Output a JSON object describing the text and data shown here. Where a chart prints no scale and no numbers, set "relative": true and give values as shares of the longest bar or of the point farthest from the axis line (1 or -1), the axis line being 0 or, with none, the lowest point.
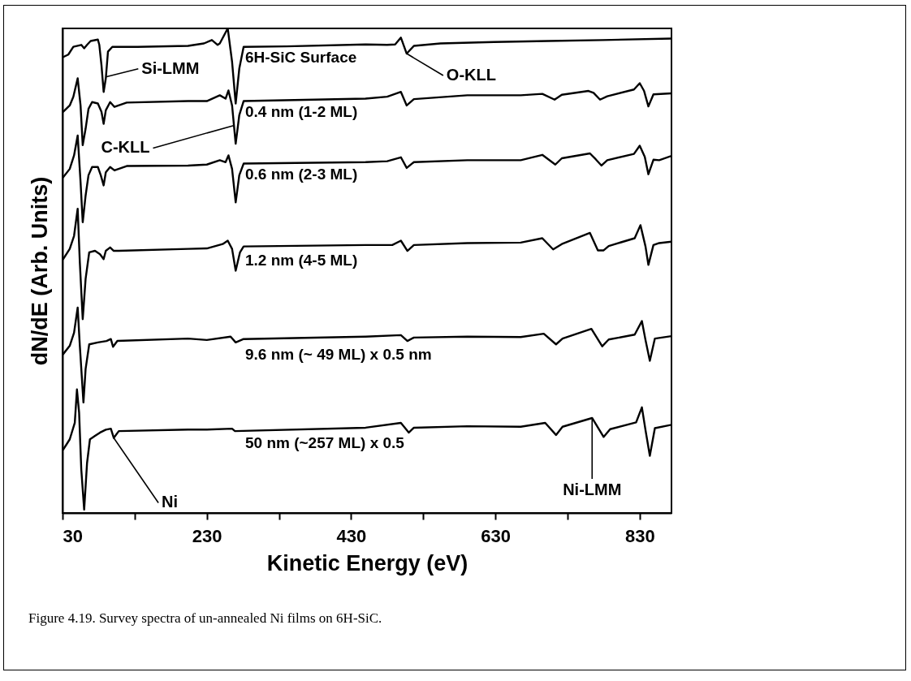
{
  "chart_data": {
    "type": "line",
    "xlabel": "Kinetic Energy (eV)",
    "ylabel": "dN/dE (Arb. Units)",
    "relative": true,
    "legend": false,
    "grid": false,
    "marker": "none",
    "line_style": "solid",
    "xlim": [
      30,
      874
    ],
    "xticks": [
      30,
      {
        "value": 130,
        "label": null
      },
      230,
      {
        "value": 330,
        "label": null
      },
      430,
      {
        "value": 530,
        "label": null
      },
      630,
      {
        "value": 730,
        "label": null
      },
      830
    ],
    "series": [
      {
        "name": "6H-SiC Surface",
        "color": "#000000",
        "x": [
          31,
          38,
          45,
          56,
          60,
          64,
          69,
          79,
          81,
          84,
          87,
          90,
          93,
          99,
          134,
          204,
          226,
          237,
          245,
          248,
          259,
          265,
          270,
          275,
          281,
          340,
          450,
          480,
          491,
          499,
          507,
          517,
          554,
          628,
          703,
          778,
          874
        ],
        "values": [
          0.941,
          0.946,
          0.962,
          0.966,
          0.959,
          0.966,
          0.974,
          0.977,
          0.966,
          0.924,
          0.869,
          0.897,
          0.952,
          0.962,
          0.962,
          0.964,
          0.969,
          0.976,
          0.966,
          0.969,
          1.0,
          0.931,
          0.845,
          0.917,
          0.962,
          0.963,
          0.967,
          0.966,
          0.967,
          0.981,
          0.948,
          0.964,
          0.969,
          0.972,
          0.974,
          0.976,
          0.979
        ]
      },
      {
        "name": "0.4 nm (1-2 ML)",
        "color": "#000000",
        "x": [
          31,
          40,
          45,
          51,
          55,
          58,
          62,
          66,
          71,
          79,
          84,
          87,
          90,
          96,
          102,
          119,
          204,
          230,
          248,
          256,
          260,
          265,
          270,
          275,
          281,
          450,
          480,
          499,
          507,
          517,
          591,
          665,
          695,
          712,
          722,
          759,
          766,
          775,
          785,
          822,
          830,
          836,
          842,
          849,
          874
        ],
        "values": [
          0.828,
          0.841,
          0.859,
          0.897,
          0.841,
          0.759,
          0.793,
          0.834,
          0.848,
          0.845,
          0.828,
          0.803,
          0.831,
          0.848,
          0.838,
          0.847,
          0.85,
          0.85,
          0.862,
          0.855,
          0.872,
          0.841,
          0.762,
          0.821,
          0.85,
          0.855,
          0.859,
          0.869,
          0.841,
          0.854,
          0.862,
          0.862,
          0.865,
          0.853,
          0.863,
          0.871,
          0.867,
          0.853,
          0.86,
          0.874,
          0.887,
          0.871,
          0.839,
          0.864,
          0.866
        ]
      },
      {
        "name": "0.6 nm (2-3 ML)",
        "color": "#000000",
        "x": [
          31,
          40,
          46,
          51,
          55,
          58,
          62,
          66,
          71,
          79,
          83,
          87,
          90,
          96,
          102,
          119,
          204,
          230,
          248,
          256,
          260,
          265,
          270,
          275,
          281,
          450,
          480,
          499,
          507,
          517,
          591,
          665,
          695,
          713,
          722,
          761,
          769,
          777,
          785,
          822,
          830,
          837,
          842,
          849,
          857,
          874
        ],
        "values": [
          0.693,
          0.71,
          0.738,
          0.779,
          0.683,
          0.6,
          0.655,
          0.697,
          0.714,
          0.714,
          0.697,
          0.676,
          0.703,
          0.714,
          0.707,
          0.716,
          0.717,
          0.719,
          0.728,
          0.724,
          0.738,
          0.71,
          0.641,
          0.697,
          0.721,
          0.724,
          0.726,
          0.734,
          0.712,
          0.724,
          0.728,
          0.728,
          0.739,
          0.719,
          0.732,
          0.742,
          0.73,
          0.717,
          0.728,
          0.741,
          0.758,
          0.735,
          0.699,
          0.729,
          0.728,
          0.737
        ]
      },
      {
        "name": "1.2 nm (4-5 ML)",
        "color": "#000000",
        "x": [
          31,
          40,
          46,
          51,
          54,
          58,
          62,
          67,
          75,
          82,
          87,
          90,
          96,
          101,
          108,
          204,
          230,
          252,
          259,
          265,
          270,
          276,
          281,
          450,
          487,
          499,
          508,
          517,
          591,
          665,
          695,
          710,
          722,
          761,
          772,
          780,
          787,
          823,
          831,
          838,
          842,
          849,
          857,
          874
        ],
        "values": [
          0.524,
          0.545,
          0.572,
          0.628,
          0.517,
          0.4,
          0.483,
          0.538,
          0.541,
          0.534,
          0.524,
          0.541,
          0.548,
          0.541,
          0.541,
          0.545,
          0.546,
          0.555,
          0.562,
          0.545,
          0.5,
          0.538,
          0.55,
          0.553,
          0.553,
          0.562,
          0.541,
          0.553,
          0.557,
          0.558,
          0.567,
          0.544,
          0.555,
          0.578,
          0.542,
          0.542,
          0.551,
          0.567,
          0.594,
          0.55,
          0.512,
          0.553,
          0.557,
          0.56
        ]
      },
      {
        "name": "9.6 nm (~ 49 ML) x 0.5 nm",
        "color": "#000000",
        "x": [
          31,
          40,
          46,
          51,
          54,
          59,
          62,
          67,
          79,
          91,
          97,
          100,
          106,
          204,
          230,
          263,
          270,
          281,
          450,
          499,
          508,
          517,
          591,
          665,
          697,
          714,
          723,
          763,
          778,
          787,
          823,
          833,
          838,
          844,
          851,
          874
        ],
        "values": [
          0.328,
          0.345,
          0.372,
          0.424,
          0.345,
          0.228,
          0.297,
          0.348,
          0.352,
          0.355,
          0.359,
          0.343,
          0.355,
          0.36,
          0.357,
          0.364,
          0.352,
          0.359,
          0.364,
          0.367,
          0.355,
          0.362,
          0.364,
          0.363,
          0.37,
          0.348,
          0.36,
          0.38,
          0.344,
          0.358,
          0.368,
          0.396,
          0.357,
          0.314,
          0.36,
          0.365
        ]
      },
      {
        "name": "50 nm (~257 ML) x 0.5",
        "color": "#000000",
        "x": [
          31,
          40,
          47,
          50,
          53,
          56,
          60,
          64,
          68,
          75,
          82,
          90,
          97,
          101,
          108,
          204,
          230,
          265,
          269,
          450,
          499,
          510,
          517,
          591,
          665,
          699,
          714,
          723,
          764,
          780,
          789,
          825,
          833,
          838,
          844,
          851,
          874
        ],
        "values": [
          0.131,
          0.152,
          0.186,
          0.255,
          0.207,
          0.09,
          0.007,
          0.103,
          0.152,
          0.159,
          0.166,
          0.172,
          0.174,
          0.155,
          0.169,
          0.172,
          0.172,
          0.174,
          0.169,
          0.176,
          0.186,
          0.166,
          0.176,
          0.179,
          0.178,
          0.186,
          0.161,
          0.178,
          0.196,
          0.157,
          0.173,
          0.187,
          0.218,
          0.171,
          0.118,
          0.175,
          0.182
        ]
      }
    ],
    "annotations": [
      {
        "text": "Si-LMM",
        "x": 90,
        "y": 0.9
      },
      {
        "text": "C-KLL",
        "x": 268,
        "y": 0.8
      },
      {
        "text": "O-KLL",
        "x": 507,
        "y": 0.948
      },
      {
        "text": "Ni",
        "x": 101,
        "y": 0.155
      },
      {
        "text": "Ni-LMM",
        "x": 764,
        "y": 0.196
      },
      "Figure 4.19.  Survey spectra of un-annealed Ni films on 6H-SiC."
    ]
  }
}
